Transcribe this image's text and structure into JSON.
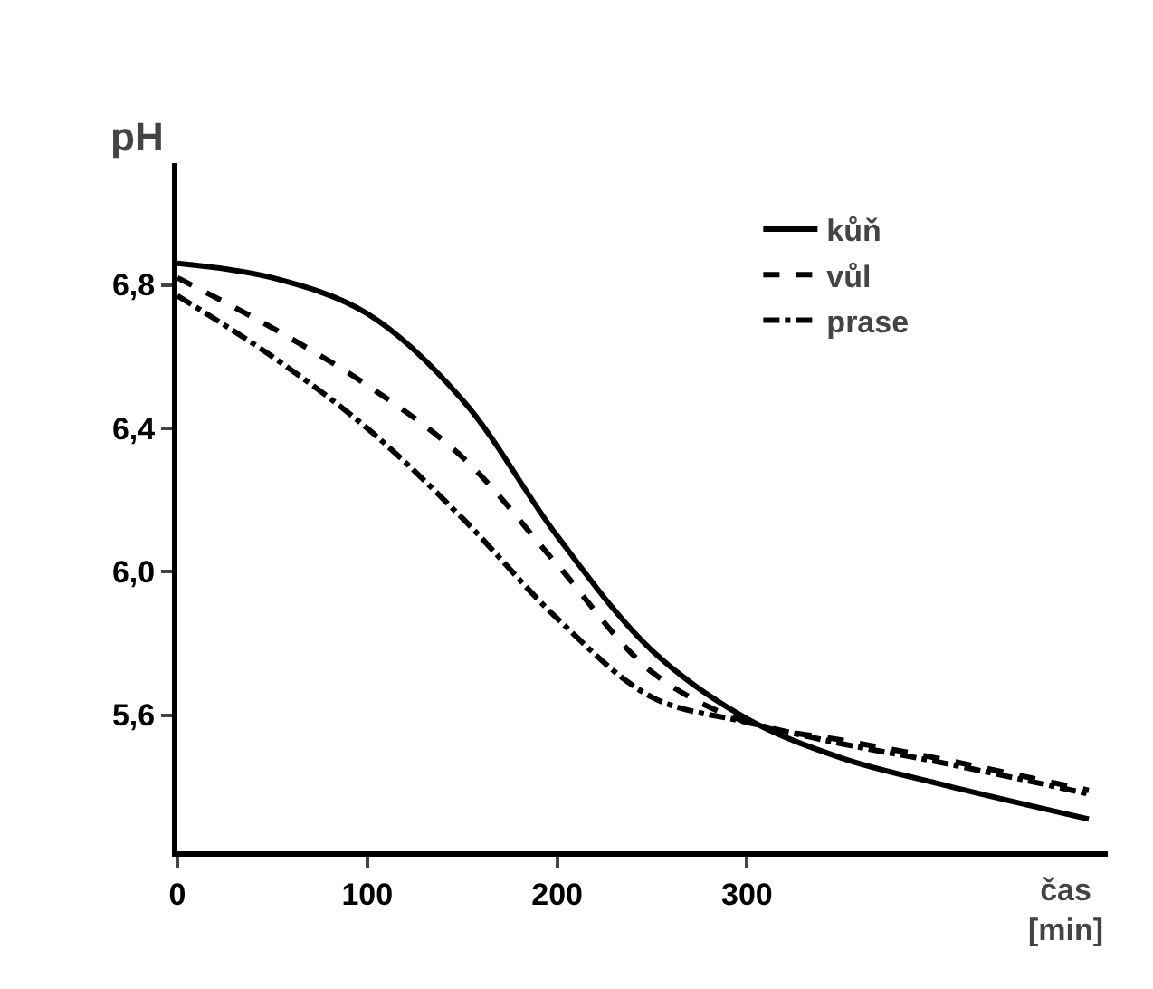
{
  "chart_data": {
    "type": "line",
    "xlabel": "čas [min]",
    "ylabel": "pH",
    "x": [
      0,
      50,
      100,
      150,
      200,
      250,
      300,
      350,
      400,
      480
    ],
    "series": [
      {
        "name": "kůň",
        "color": "#000000",
        "line_style": "solid",
        "values": [
          6.86,
          6.82,
          6.72,
          6.48,
          6.1,
          5.78,
          5.59,
          5.48,
          5.41,
          5.31
        ]
      },
      {
        "name": "vůl",
        "color": "#000000",
        "line_style": "dashed",
        "values": [
          6.82,
          6.68,
          6.52,
          6.32,
          6.02,
          5.72,
          5.58,
          5.53,
          5.48,
          5.39
        ]
      },
      {
        "name": "prase",
        "color": "#000000",
        "line_style": "dashdot",
        "values": [
          6.77,
          6.6,
          6.4,
          6.15,
          5.87,
          5.65,
          5.58,
          5.52,
          5.47,
          5.38
        ]
      }
    ],
    "xlim": [
      0,
      490
    ],
    "ylim": [
      5.22,
      7.14
    ],
    "xticks": [
      0,
      100,
      200,
      300
    ],
    "yticks": [
      {
        "value": 5.6,
        "label": "5,6"
      },
      {
        "value": 6.0,
        "label": "6,0"
      },
      {
        "value": 6.4,
        "label": "6,4"
      },
      {
        "value": 6.8,
        "label": "6,8"
      }
    ],
    "grid": false,
    "legend": "top right",
    "marker": "none"
  }
}
